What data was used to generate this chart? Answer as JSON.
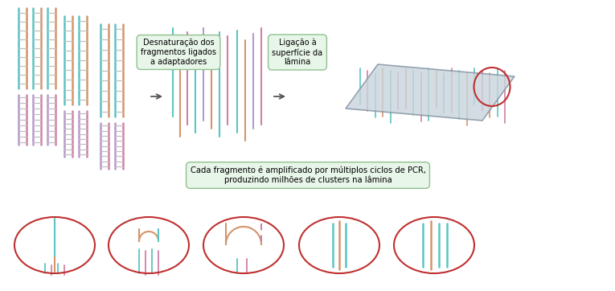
{
  "bg_color": "#ffffff",
  "box1_text": "Desnaturação dos\nfragmentos ligados\na adaptadores",
  "box2_text": "Ligação à\nsuperfície da\nlâmina",
  "box3_text": "Cada fragmento é amplificado por múltiplos ciclos de PCR,\nproduzindo milhões de clusters na lâmina",
  "box_bg": "#E8F5E9",
  "box_border": "#90C090",
  "arrow_color": "#555555",
  "circle_color": "#C03030",
  "teal": "#5BC4C4",
  "orange": "#D4956A",
  "pink": "#D080A8",
  "mauve": "#B898CC",
  "rung_color": "#C0C0C0",
  "plate_face": "#C8D4DC",
  "plate_edge": "#8090A0"
}
